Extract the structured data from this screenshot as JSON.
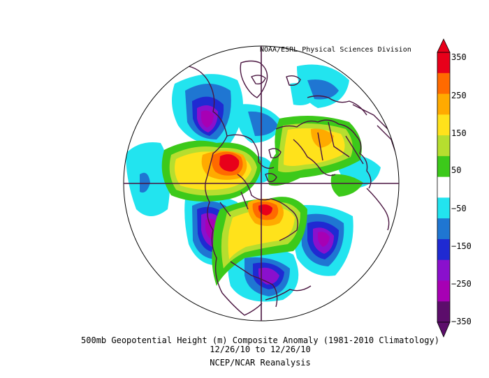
{
  "credit": "NOAA/ESRL Physical Sciences Division",
  "caption": {
    "line1": "500mb Geopotential Height (m) Composite Anomaly (1981-2010 Climatology)",
    "line2": "12/26/10   to 12/26/10",
    "line3": "NCEP/NCAR Reanalysis"
  },
  "colorbar": {
    "labels": [
      "350",
      "250",
      "150",
      "50",
      "−50",
      "−150",
      "−250",
      "−350"
    ],
    "colors": [
      "#e8001a",
      "#ff6a00",
      "#ffaa00",
      "#ffe21b",
      "#b6de2f",
      "#3cc91a",
      "#ffffff",
      "#22e4ef",
      "#1f76d2",
      "#1f2ad2",
      "#8a10cd",
      "#a700b4",
      "#5c0d6b"
    ]
  },
  "map": {
    "projection": "north-polar-stereographic",
    "ocean_color": "#ffffff",
    "coastline_color": "#4a1540"
  }
}
